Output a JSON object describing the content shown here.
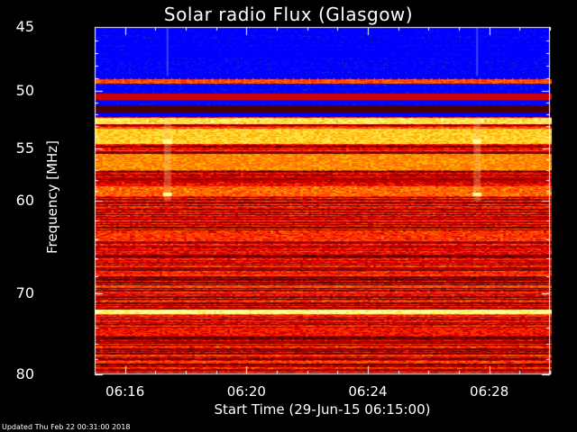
{
  "chart_data": {
    "type": "heatmap",
    "title": "Solar radio Flux (Glasgow)",
    "ylabel": "Frequency [MHz]",
    "xlabel": "Start Time (29-Jun-15 06:15:00)",
    "y_scale": "log",
    "ylim": [
      45,
      80
    ],
    "yticks": [
      "45",
      "50",
      "55",
      "60",
      "70",
      "80"
    ],
    "yticks_values": [
      45,
      50,
      55,
      60,
      70,
      80
    ],
    "xticks": [
      "06:16",
      "06:20",
      "06:24",
      "06:28"
    ],
    "xticks_minutes": [
      1,
      5,
      9,
      13
    ],
    "x_range_minutes": [
      0,
      15
    ],
    "colormap": [
      "#1a0000",
      "#4a0000",
      "#900000",
      "#d40000",
      "#ff3000",
      "#ff7000",
      "#ffb000",
      "#ffe040",
      "#ffff90"
    ],
    "low_band_color": "#0000ff",
    "bands": [
      {
        "f": [
          45.2,
          48.8
        ],
        "level": "background-blue"
      },
      {
        "f": [
          49.0,
          49.4
        ],
        "level": 0.55
      },
      {
        "f": [
          50.2,
          50.7
        ],
        "level": 0.4
      },
      {
        "f": [
          51.2,
          51.8
        ],
        "level": 0.15
      },
      {
        "f": [
          52.3,
          52.8
        ],
        "level": 0.85
      },
      {
        "f": [
          53.2,
          54.6
        ],
        "level": 0.8
      },
      {
        "f": [
          55.5,
          57.0
        ],
        "level": 0.65
      },
      {
        "f": [
          58.5,
          59.5
        ],
        "level": 0.6
      },
      {
        "f": [
          63.0,
          64.0
        ],
        "level": 0.5
      },
      {
        "f": [
          71.8,
          72.3
        ],
        "level": 0.95
      },
      {
        "f": [
          74.0,
          75.0
        ],
        "level": 0.45
      }
    ],
    "bursts_minutes": [
      2.4,
      12.6
    ]
  },
  "footer": "Updated Thu Feb 22 00:31:00 2018"
}
